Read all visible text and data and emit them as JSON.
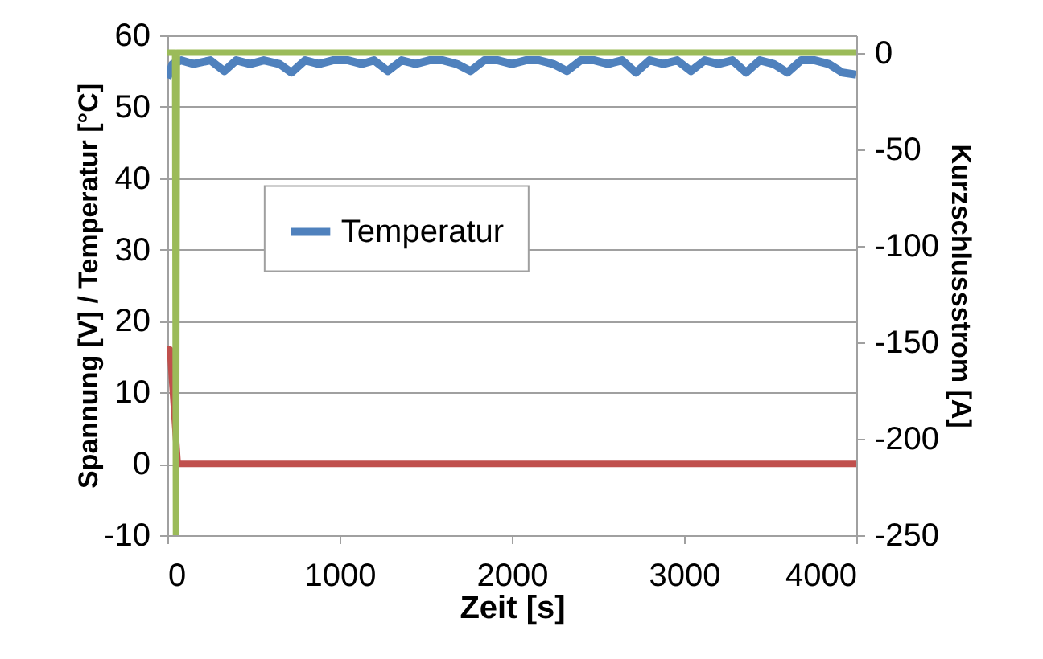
{
  "chart_data": {
    "type": "line",
    "xlabel": "Zeit [s]",
    "ylabel": "Spannung [V] / Temperatur [°C]",
    "y2label": "Kurzschlussstrom [A]",
    "xlim": [
      0,
      4000
    ],
    "xticks": [
      0,
      1000,
      2000,
      3000,
      4000
    ],
    "ylim": [
      -10,
      60
    ],
    "yticks": [
      -10,
      0,
      10,
      20,
      30,
      40,
      50,
      60
    ],
    "y2lim": [
      -250,
      9
    ],
    "y2ticks": [
      -250,
      -200,
      -150,
      -100,
      -50,
      0
    ],
    "grid": "y",
    "legend": "left",
    "series": [
      {
        "name": "Temperatur",
        "color": "#4f81bd",
        "x": [
          0,
          30,
          80,
          150,
          250,
          330,
          400,
          480,
          560,
          650,
          720,
          800,
          880,
          960,
          1050,
          1130,
          1200,
          1280,
          1360,
          1440,
          1520,
          1600,
          1680,
          1760,
          1840,
          1920,
          2000,
          2080,
          2160,
          2240,
          2320,
          2400,
          2480,
          2560,
          2640,
          2720,
          2800,
          2880,
          2960,
          3040,
          3120,
          3200,
          3280,
          3360,
          3440,
          3520,
          3600,
          3680,
          3760,
          3840,
          3920,
          4000
        ],
        "values": [
          54,
          56,
          56.5,
          56,
          56.5,
          55,
          56.5,
          56,
          56.5,
          56,
          54.8,
          56.5,
          56,
          56.5,
          56.5,
          56,
          56.5,
          55,
          56.5,
          56,
          56.5,
          56.5,
          56,
          55,
          56.5,
          56.5,
          56,
          56.5,
          56.5,
          56,
          55,
          56.5,
          56.5,
          56,
          56.5,
          54.8,
          56.5,
          56,
          56.5,
          55,
          56.5,
          56,
          56.5,
          54.8,
          56.5,
          56,
          54.8,
          56.5,
          56.5,
          56,
          54.8,
          54.5
        ]
      },
      {
        "color": "#c0504d",
        "x": [
          0,
          15,
          60,
          4000
        ],
        "values": [
          16,
          16,
          0,
          0
        ]
      },
      {
        "color": "#9bbb59",
        "axis": "y2",
        "x": [
          0,
          45,
          50,
          55,
          4000
        ],
        "values": [
          0,
          0,
          -250,
          0,
          0
        ]
      }
    ]
  }
}
